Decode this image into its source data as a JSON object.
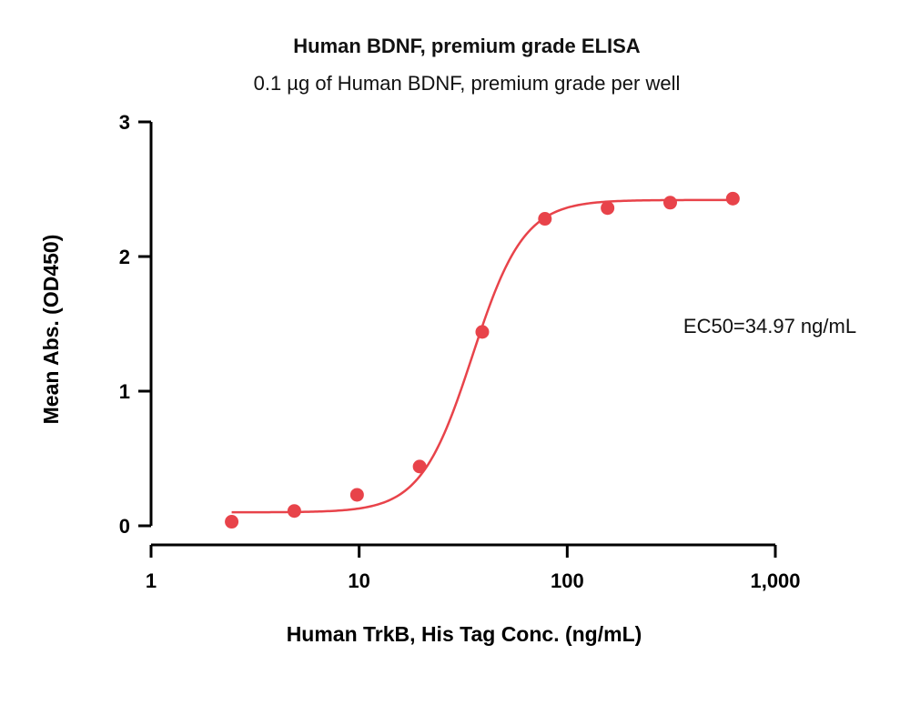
{
  "chart_data": {
    "type": "scatter",
    "title": "Human BDNF, premium grade ELISA",
    "subtitle": "0.1 µg of Human BDNF, premium grade per well",
    "xlabel": "Human TrkB, His Tag Conc. (ng/mL)",
    "ylabel": "Mean Abs. (OD450)",
    "x_scale": "log",
    "xlim": [
      1,
      1000
    ],
    "ylim": [
      0,
      3
    ],
    "x_ticks": [
      1,
      10,
      100,
      1000
    ],
    "x_tick_labels": [
      "1",
      "10",
      "100",
      "1,000"
    ],
    "y_ticks": [
      0,
      1,
      2,
      3
    ],
    "y_tick_labels": [
      "0",
      "1",
      "2",
      "3"
    ],
    "grid": false,
    "series": [
      {
        "x": [
          2.44,
          4.88,
          9.77,
          19.53,
          39.06,
          78.13,
          156.25,
          312.5,
          625
        ],
        "y": [
          0.03,
          0.11,
          0.23,
          0.44,
          1.44,
          2.28,
          2.36,
          2.4,
          2.43
        ],
        "color": "#e8434a",
        "fit": {
          "model": "4PL",
          "bottom": 0.1,
          "top": 2.42,
          "ec50": 34.97,
          "hill": 3.5,
          "x_range": [
            2.44,
            625
          ]
        }
      }
    ],
    "annotations": [
      {
        "text": "EC50=34.97 ng/mL"
      }
    ]
  }
}
